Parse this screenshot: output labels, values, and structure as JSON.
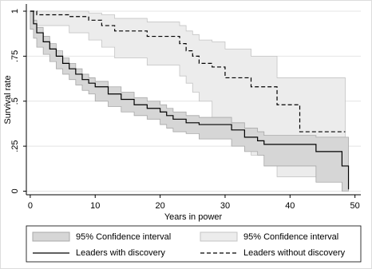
{
  "chart_data": {
    "type": "step",
    "x_label": "Years in power",
    "y_label": "Survival rate",
    "xlim": [
      -0.6,
      50.9
    ],
    "ylim": [
      -0.02,
      1.04
    ],
    "xticks": [
      0,
      10,
      20,
      30,
      40,
      50
    ],
    "yticks": [
      0,
      {
        "value": 0.25,
        "label": ".25"
      },
      {
        "value": 0.5,
        "label": ".5"
      },
      {
        "value": 0.75,
        "label": ".75"
      },
      1
    ],
    "grid": true,
    "legend": "bottom",
    "series": [
      {
        "name": "Leaders with discovery",
        "color": "#000000",
        "dash": false,
        "ci_name": "95% Confidence interval",
        "ci_color": "#d6d6d6",
        "ci_edge": "#a8a8a8",
        "x": [
          0,
          0.5,
          1,
          2,
          3,
          4,
          5,
          6,
          7,
          8,
          9,
          10,
          12,
          14,
          16,
          18,
          20,
          21,
          22,
          24,
          26,
          31,
          33,
          35,
          36,
          44,
          48,
          49
        ],
        "values": [
          1,
          0.93,
          0.88,
          0.83,
          0.79,
          0.75,
          0.71,
          0.68,
          0.65,
          0.62,
          0.6,
          0.58,
          0.54,
          0.51,
          0.48,
          0.46,
          0.44,
          0.42,
          0.4,
          0.38,
          0.37,
          0.34,
          0.3,
          0.28,
          0.26,
          0.22,
          0.14,
          0.01
        ],
        "lower": [
          1,
          0.9,
          0.85,
          0.8,
          0.76,
          0.72,
          0.68,
          0.65,
          0.62,
          0.59,
          0.56,
          0.54,
          0.5,
          0.47,
          0.44,
          0.42,
          0.4,
          0.37,
          0.35,
          0.33,
          0.32,
          0.29,
          0.25,
          0.22,
          0.2,
          0.14,
          0.05,
          0.0
        ],
        "upper": [
          1,
          0.95,
          0.91,
          0.86,
          0.82,
          0.78,
          0.74,
          0.71,
          0.68,
          0.65,
          0.63,
          0.61,
          0.58,
          0.55,
          0.52,
          0.5,
          0.48,
          0.46,
          0.44,
          0.42,
          0.41,
          0.38,
          0.35,
          0.33,
          0.31,
          0.3,
          0.3,
          0.3
        ]
      },
      {
        "name": "Leaders without discovery",
        "color": "#000000",
        "dash": true,
        "ci_name": "95% Confidence interval",
        "ci_color": "#ececec",
        "ci_edge": "#c4c4c4",
        "x": [
          0,
          1,
          6,
          9,
          11,
          13,
          18,
          23,
          24,
          25,
          26,
          28,
          30,
          34,
          38,
          41.5,
          48.5
        ],
        "values": [
          1,
          0.98,
          0.97,
          0.95,
          0.92,
          0.89,
          0.86,
          0.82,
          0.78,
          0.75,
          0.71,
          0.69,
          0.63,
          0.58,
          0.48,
          0.33,
          0.33
        ],
        "lower": [
          1,
          0.94,
          0.92,
          0.88,
          0.84,
          0.8,
          0.74,
          0.7,
          0.64,
          0.6,
          0.55,
          0.5,
          0.4,
          0.35,
          0.2,
          0.08,
          0.08
        ],
        "upper": [
          1,
          1,
          1,
          0.99,
          0.98,
          0.96,
          0.94,
          0.92,
          0.89,
          0.87,
          0.84,
          0.83,
          0.79,
          0.75,
          0.63,
          0.63,
          0.63
        ]
      }
    ]
  }
}
